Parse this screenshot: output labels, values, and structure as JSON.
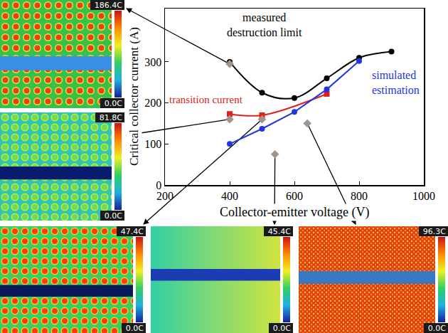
{
  "chart_data": {
    "type": "line",
    "xlabel": "Collector-emitter voltage (V)",
    "ylabel": "Critical collector current (A)",
    "xlim": [
      200,
      1000
    ],
    "xticks": [
      200,
      400,
      600,
      800,
      1000
    ],
    "ylim": [
      0,
      430
    ],
    "yticks": [
      0,
      100,
      200,
      300
    ],
    "grid": false,
    "series": [
      {
        "name": "measured destruction limit",
        "type": "line",
        "color": "#000000",
        "marker": "circle",
        "line_style": "smooth",
        "x": [
          400,
          500,
          600,
          700,
          800,
          900
        ],
        "values": [
          300,
          225,
          212,
          260,
          310,
          325
        ]
      },
      {
        "name": "transition current",
        "type": "line",
        "color": "#e0201b",
        "marker": "square",
        "line_style": "smooth",
        "x": [
          400,
          500,
          700
        ],
        "values": [
          173,
          170,
          222
        ]
      },
      {
        "name": "simulated estimation",
        "type": "line",
        "color": "#2236e0",
        "marker": "circle",
        "line_style": "solid",
        "x": [
          400,
          500,
          600,
          700,
          800
        ],
        "values": [
          100,
          137,
          178,
          233,
          302
        ]
      },
      {
        "type": "scatter",
        "color": "#a0948c",
        "marker": "diamond",
        "x": [
          400,
          400,
          500,
          540,
          640
        ],
        "values": [
          295,
          160,
          160,
          75,
          150
        ]
      }
    ]
  },
  "thermal_images": [
    {
      "max_label": "186.4C",
      "min_label": "0.0C"
    },
    {
      "max_label": "81.8C",
      "min_label": "0.0C"
    },
    {
      "max_label": "47.4C",
      "min_label": "0.0C"
    },
    {
      "max_label": "45.4C",
      "min_label": "0.0C"
    },
    {
      "max_label": "96.3C",
      "min_label": "0.0C"
    }
  ]
}
